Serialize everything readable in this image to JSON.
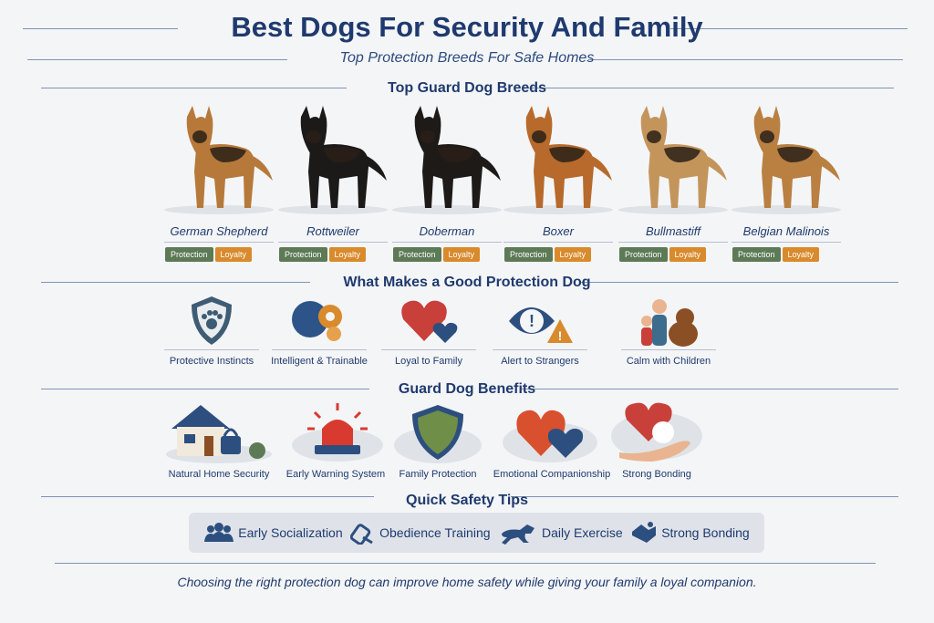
{
  "header": {
    "title": "Best Dogs For Security And Family",
    "subtitle": "Top Protection Breeds For Safe Homes"
  },
  "breeds_section": {
    "title": "Top Guard Dog Breeds",
    "tag_protection": "Protection",
    "tag_loyalty": "Loyalty",
    "breeds": [
      {
        "name": "German Shepherd",
        "color": "#b7793a",
        "dark": "#2a2018"
      },
      {
        "name": "Rottweiler",
        "color": "#1c1a19",
        "dark": "#9a5a2a"
      },
      {
        "name": "Doberman",
        "color": "#1e1a18",
        "dark": "#8a4f24"
      },
      {
        "name": "Boxer",
        "color": "#b76a2c",
        "dark": "#f2ede6"
      },
      {
        "name": "Bullmastiff",
        "color": "#c4955b",
        "dark": "#2b2420"
      },
      {
        "name": "Belgian Malinois",
        "color": "#b98042",
        "dark": "#2a2018"
      }
    ]
  },
  "traits_section": {
    "title": "What Makes a Good Protection Dog",
    "items": [
      {
        "label": "Protective Instincts",
        "icon": "shield-paw-icon"
      },
      {
        "label": "Intelligent & Trainable",
        "icon": "brain-gears-icon"
      },
      {
        "label": "Loyal to Family",
        "icon": "hearts-icon"
      },
      {
        "label": "Alert to Strangers",
        "icon": "eye-warning-icon"
      },
      {
        "label": "Calm with Children",
        "icon": "children-dog-icon"
      }
    ]
  },
  "benefits_section": {
    "title": "Guard Dog Benefits",
    "items": [
      {
        "label": "Natural Home Security",
        "icon": "house-lock-icon"
      },
      {
        "label": "Early Warning System",
        "icon": "alarm-siren-icon"
      },
      {
        "label": "Family Protection",
        "icon": "shield-icon"
      },
      {
        "label": "Emotional Companionship",
        "icon": "hearts-icon"
      },
      {
        "label": "Strong Bonding",
        "icon": "hand-heart-paw-icon"
      }
    ]
  },
  "tips_section": {
    "title": "Quick Safety Tips",
    "items": [
      {
        "label": "Early Socialization",
        "icon": "people-group-icon"
      },
      {
        "label": "Obedience Training",
        "icon": "whistle-icon"
      },
      {
        "label": "Daily Exercise",
        "icon": "running-dog-icon"
      },
      {
        "label": "Strong Bonding",
        "icon": "handshake-icon"
      }
    ]
  },
  "footer": {
    "text": "Choosing the right protection dog can improve home safety while giving your family a loyal companion."
  },
  "colors": {
    "navy": "#1f3a6e",
    "protection": "#5d7a56",
    "loyalty": "#d98a2c"
  }
}
